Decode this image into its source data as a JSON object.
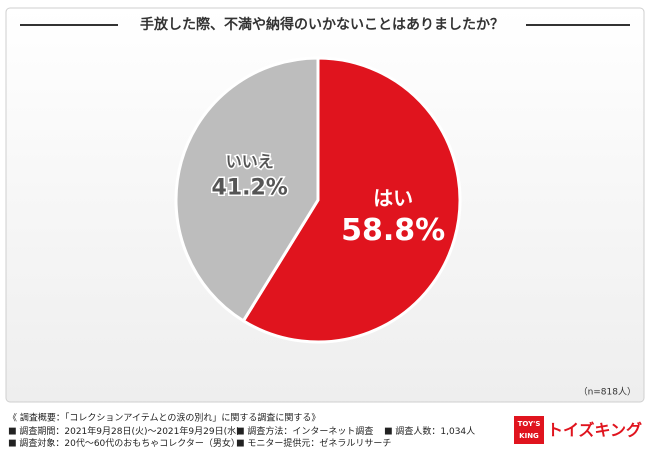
{
  "chart_data": {
    "type": "pie",
    "title": "手放した際、不満や納得のいかないことはありましたか？",
    "categories": [
      "はい",
      "いいえ"
    ],
    "values": [
      58.8,
      41.2
    ],
    "value_labels": [
      "58.8%",
      "41.2%"
    ],
    "colors": [
      "#e0141e",
      "#bdbdbd"
    ],
    "note": "（n=818人）"
  },
  "survey": {
    "heading": "《 調査概要：「コレクションアイテムとの涙の別れ」に関する調査に関する》",
    "items": [
      "調査期間：2021年9月28日(火)～2021年9月29日(水)",
      "調査方法：インターネット調査",
      "調査人数：1,034人",
      "調査対象：20代～60代のおもちゃコレクター（男女）",
      "モニター提供元：ゼネラルリサーチ"
    ]
  },
  "logo": {
    "top": "TOY'S",
    "bottom": "KING",
    "name": "トイズキング"
  }
}
